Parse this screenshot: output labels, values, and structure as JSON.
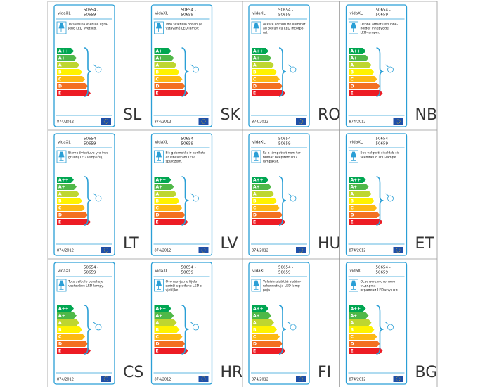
{
  "brand": "vidaXL",
  "model": [
    "50654 -",
    "50659"
  ],
  "classes": [
    "A++",
    "A+",
    "A",
    "B",
    "C",
    "D",
    "E"
  ],
  "class_colors": [
    "#00a651",
    "#50b848",
    "#bed630",
    "#fff200",
    "#fdb913",
    "#f37021",
    "#ed1c24"
  ],
  "regulation": "874/2012",
  "labels": [
    {
      "code": "SL",
      "description": [
        "Ta svetilka vsebuje vgra-",
        "jeno LED svetilko."
      ]
    },
    {
      "code": "SK",
      "description": [
        "Toto svietidlo obsahuje",
        "vstavané LED lampy."
      ]
    },
    {
      "code": "RO",
      "description": [
        "Aceste corpuri de iluminat",
        "au becuri cu LED incorpo-",
        "rat."
      ]
    },
    {
      "code": "NB",
      "description": [
        "Denne armaturen inne-",
        "holder innebygde",
        "LED-lamper."
      ]
    },
    {
      "code": "LT",
      "description": [
        "Šiame šviestuve yra inte-",
        "gruotų LED lempučių."
      ]
    },
    {
      "code": "LV",
      "description": [
        "Šis gaismeklis ir aprīkots",
        "ar iebūvētām LED",
        "spuldzēm."
      ]
    },
    {
      "code": "HU",
      "description": [
        "Ez a lámpatest nem tar-",
        "talmaz beépített LED",
        "lámpákat."
      ]
    },
    {
      "code": "ET",
      "description": [
        "See valgusti sisaldab sis-",
        "seehitatud LED-lampe"
      ]
    },
    {
      "code": "CS",
      "description": [
        "Toto svítidlo obsahuje",
        "vestavěné LED lampy."
      ]
    },
    {
      "code": "HR",
      "description": [
        "Ovo rasvjetno tijelo",
        "sadrži ugrađene LED s-",
        "vjetiljke"
      ]
    },
    {
      "code": "FI",
      "description": [
        "Valaisin sisältää sisään-",
        "rakennettuja LED-lamp-",
        "puja."
      ]
    },
    {
      "code": "BG",
      "description": [
        "Осветителното тяло",
        "съдържа",
        "вградени LED крушки."
      ]
    }
  ]
}
